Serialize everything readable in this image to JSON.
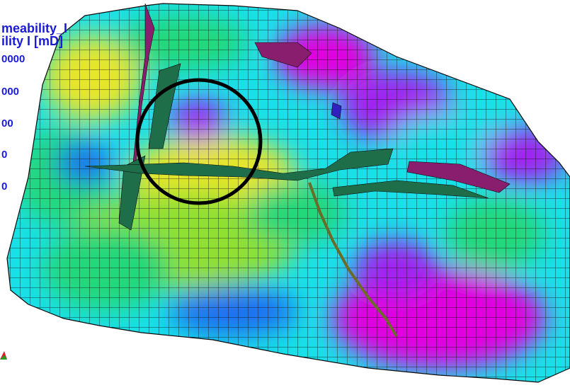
{
  "legend": {
    "title_line1": "meability_I",
    "title_line2": "ility I [mD]",
    "ticks": [
      "0000",
      "000",
      "00",
      "0",
      "0"
    ],
    "text_color": "#1a1ad6"
  },
  "palette": {
    "magenta": "#e000e0",
    "purple": "#a020f0",
    "blue": "#1e6ef0",
    "cyan": "#19e0e8",
    "green": "#22d87a",
    "lime": "#8fe030",
    "yellow": "#e6e62a",
    "fault_purple": "#8a1e6e",
    "fault_green": "#1f6e4a",
    "highlight_circle": "#000000"
  },
  "icons": {
    "axis_triad": "axis-triad-icon"
  }
}
